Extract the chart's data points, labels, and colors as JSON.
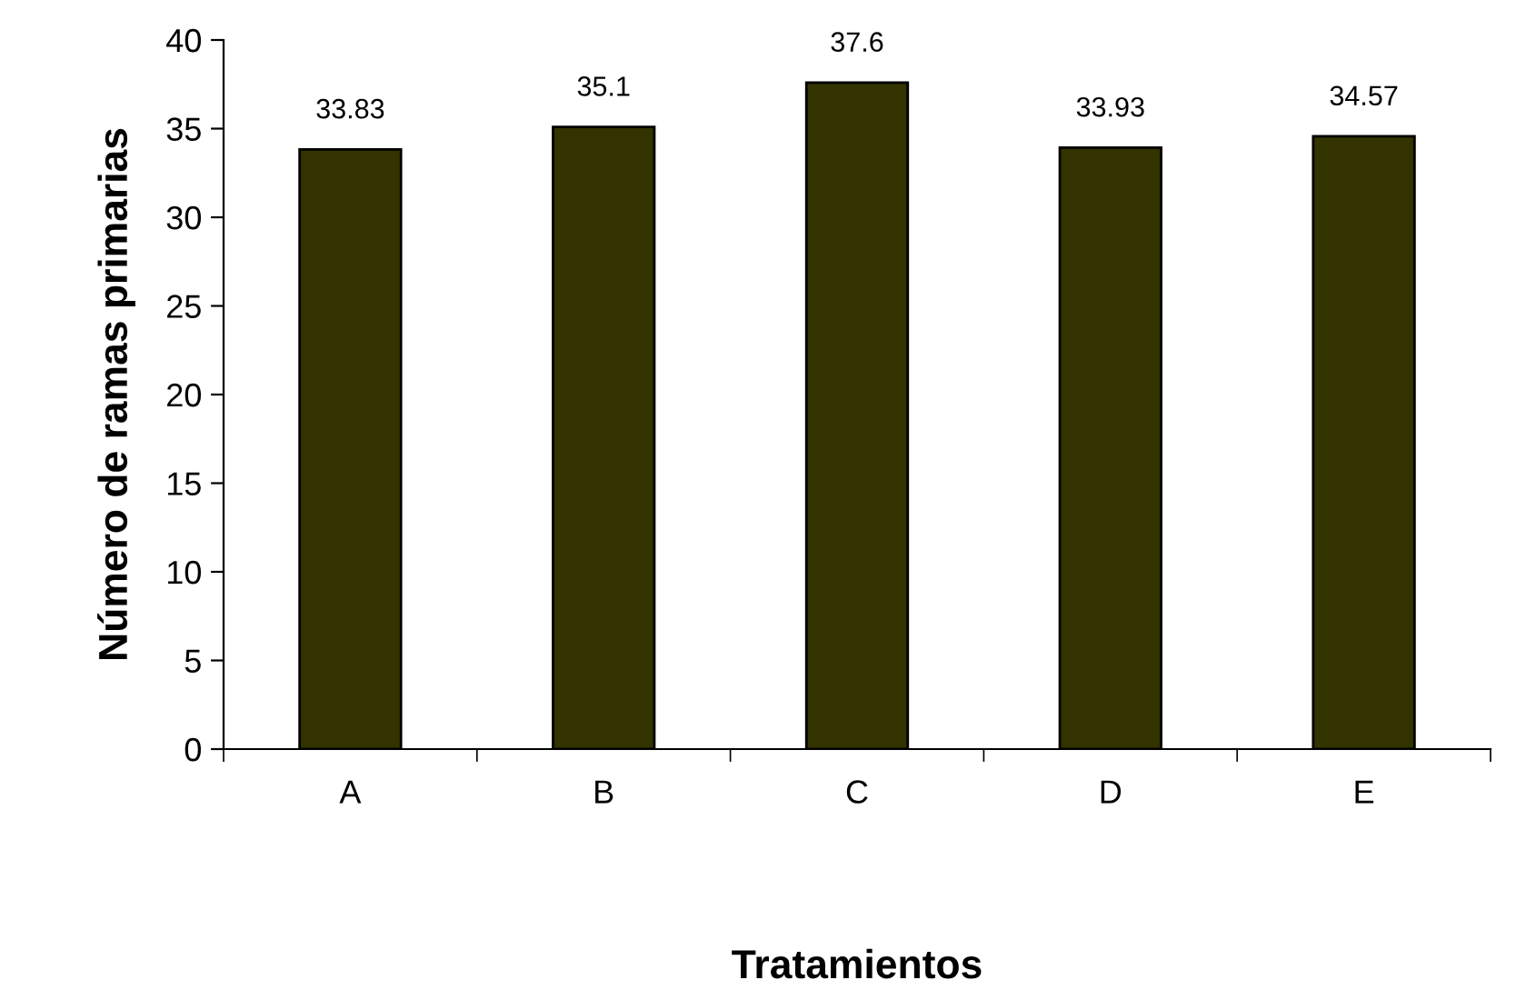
{
  "chart_data": {
    "type": "bar",
    "xlabel": "Tratamientos",
    "ylabel": "Número de ramas primarias",
    "categories": [
      "A",
      "B",
      "C",
      "D",
      "E"
    ],
    "values": [
      33.83,
      35.1,
      37.6,
      33.93,
      34.57
    ],
    "color": "#333300",
    "ylim": [
      0,
      40
    ],
    "yticks": [
      0,
      5,
      10,
      15,
      20,
      25,
      30,
      35,
      40
    ],
    "grid": false,
    "legend": false,
    "data_labels": true
  }
}
